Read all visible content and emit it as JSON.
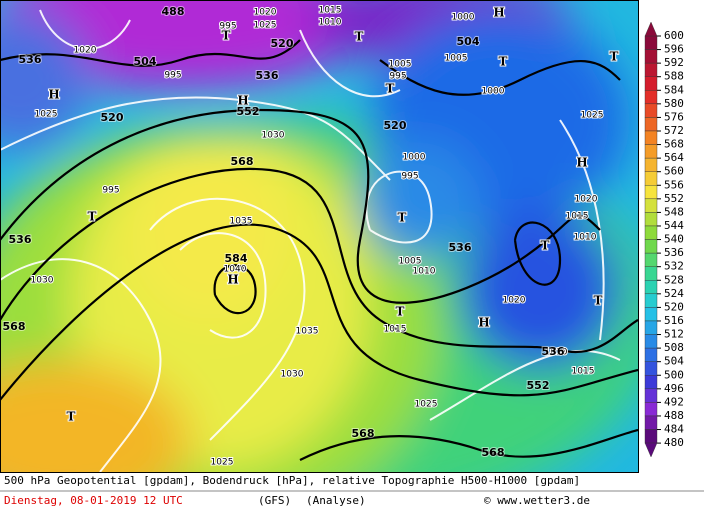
{
  "map": {
    "colorbar": {
      "labels": [
        600,
        596,
        592,
        588,
        584,
        580,
        576,
        572,
        568,
        564,
        560,
        556,
        552,
        548,
        544,
        540,
        536,
        532,
        528,
        524,
        520,
        516,
        512,
        508,
        504,
        500,
        496,
        492,
        488,
        484,
        480
      ]
    },
    "contours_gpdam": [
      488,
      504,
      520,
      536,
      536,
      552,
      568,
      584,
      536,
      520,
      504,
      536,
      536,
      552,
      568,
      568,
      568,
      520
    ],
    "isobars_hpa": [
      1025,
      1020,
      1015,
      1010,
      1000,
      1005,
      1000,
      995,
      1005,
      1025,
      1020,
      1030,
      995,
      1035,
      1040,
      1030,
      1035,
      1030,
      1025,
      1025,
      1015,
      1005,
      1010,
      1020,
      1010,
      1015,
      1010,
      1015,
      1020,
      1025,
      1000,
      995,
      995,
      995
    ],
    "pressure_centers": [
      "H",
      "H",
      "H",
      "H",
      "H",
      "H",
      "T",
      "T",
      "T",
      "T",
      "T",
      "T",
      "T",
      "T",
      "T",
      "T",
      "T"
    ],
    "footer": {
      "description": "500 hPa Geopotential [gpdam], Bodendruck [hPa], relative Topographie H500-H1000 [gpdam]",
      "date": "Dienstag, 08-01-2019  12 UTC",
      "model": "(GFS)",
      "run": "(Analyse)",
      "source": "© www.wetter3.de"
    }
  }
}
